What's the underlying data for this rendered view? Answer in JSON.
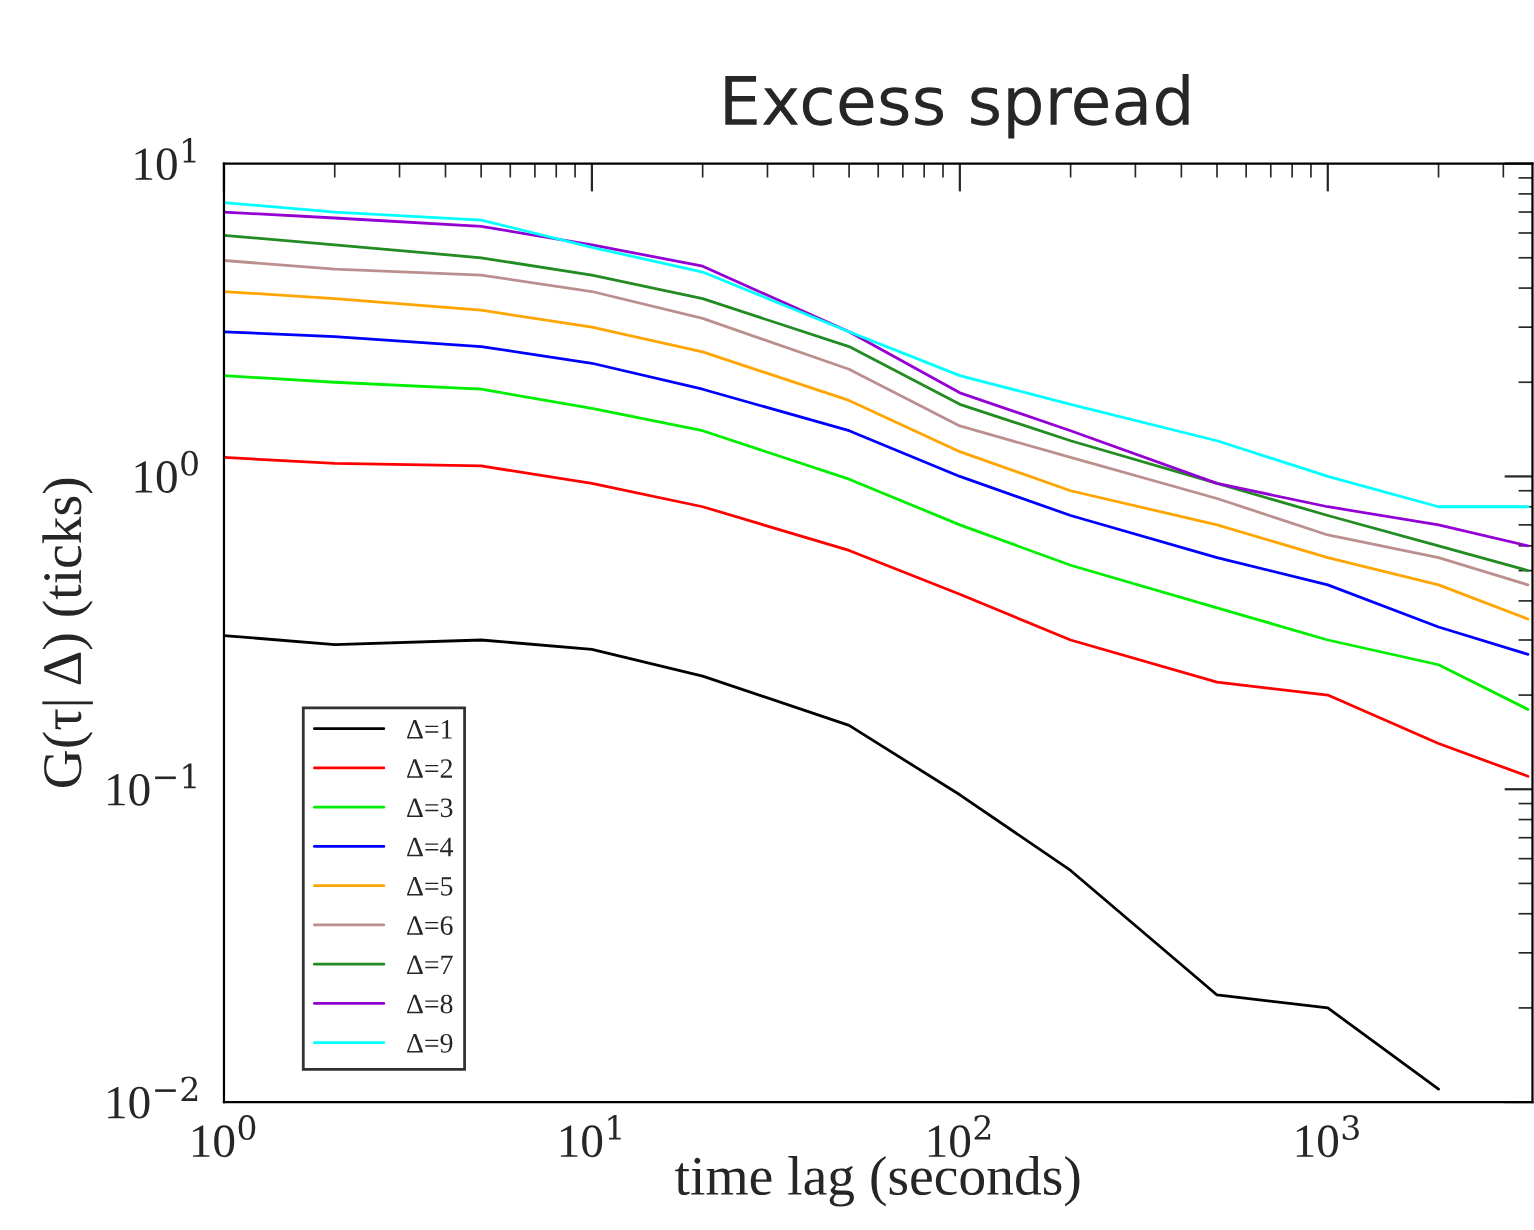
{
  "chart_data": {
    "type": "line",
    "title": "Excess spread",
    "xlabel": "time lag (seconds)",
    "ylabel": "G(τ| Δ) (ticks)",
    "x": [
      1,
      2,
      5,
      10,
      20,
      50,
      100,
      200,
      500,
      1000,
      2000,
      3500
    ],
    "series": [
      {
        "name": "Δ=1",
        "color": "#000000",
        "values": [
          0.31,
          0.29,
          0.3,
          0.28,
          0.23,
          0.16,
          0.096,
          0.055,
          0.022,
          0.02,
          0.011,
          null
        ]
      },
      {
        "name": "Δ=2",
        "color": "#ff0000",
        "values": [
          1.15,
          1.1,
          1.08,
          0.95,
          0.8,
          0.58,
          0.42,
          0.3,
          0.22,
          0.2,
          0.14,
          0.11
        ]
      },
      {
        "name": "Δ=3",
        "color": "#00ee00",
        "values": [
          2.1,
          2.0,
          1.9,
          1.65,
          1.4,
          0.98,
          0.7,
          0.52,
          0.38,
          0.3,
          0.25,
          0.18
        ]
      },
      {
        "name": "Δ=4",
        "color": "#0000ff",
        "values": [
          2.9,
          2.8,
          2.6,
          2.3,
          1.9,
          1.4,
          1.0,
          0.75,
          0.55,
          0.45,
          0.33,
          0.27
        ]
      },
      {
        "name": "Δ=5",
        "color": "#ffa500",
        "values": [
          3.9,
          3.7,
          3.4,
          3.0,
          2.5,
          1.75,
          1.2,
          0.9,
          0.7,
          0.55,
          0.45,
          0.35
        ]
      },
      {
        "name": "Δ=6",
        "color": "#bc8f8f",
        "values": [
          4.9,
          4.6,
          4.4,
          3.9,
          3.2,
          2.2,
          1.45,
          1.15,
          0.85,
          0.65,
          0.55,
          0.45
        ]
      },
      {
        "name": "Δ=7",
        "color": "#228b22",
        "values": [
          5.9,
          5.5,
          5.0,
          4.4,
          3.7,
          2.6,
          1.7,
          1.3,
          0.95,
          0.75,
          0.6,
          0.5
        ]
      },
      {
        "name": "Δ=8",
        "color": "#9400d3",
        "values": [
          7.0,
          6.7,
          6.3,
          5.5,
          4.7,
          2.9,
          1.85,
          1.4,
          0.95,
          0.8,
          0.7,
          0.6
        ]
      },
      {
        "name": "Δ=9",
        "color": "#00ffff",
        "values": [
          7.5,
          7.0,
          6.6,
          5.4,
          4.5,
          2.9,
          2.1,
          1.7,
          1.3,
          1.0,
          0.8,
          0.8
        ]
      }
    ],
    "log": "xy",
    "xlim": [
      1,
      3600
    ],
    "ylim": [
      0.01,
      10
    ],
    "xticks": [
      {
        "value": 1,
        "label": "10$^{0}$"
      },
      {
        "value": 10,
        "label": "10$^{1}$"
      },
      {
        "value": 100,
        "label": "10$^{2}$"
      },
      {
        "value": 1000,
        "label": "10$^{3}$"
      }
    ],
    "yticks": [
      {
        "value": 0.01,
        "label": "10$^{−2}$"
      },
      {
        "value": 0.1,
        "label": "10$^{−1}$"
      },
      {
        "value": 1,
        "label": "10$^{0}$"
      },
      {
        "value": 10,
        "label": "10$^{1}$"
      }
    ],
    "grid": false,
    "legend": "bottom left",
    "marker": "none",
    "line_style": "solid"
  }
}
